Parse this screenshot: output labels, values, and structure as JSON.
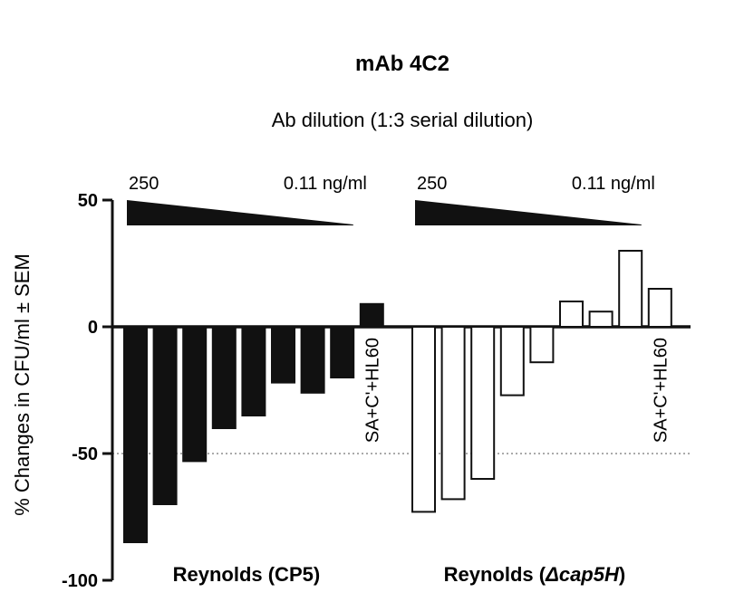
{
  "chart_data": {
    "type": "bar",
    "title": "mAb 4C2",
    "subtitle": "Ab dilution (1:3 serial dilution)",
    "ylabel": "% Changes in CFU/ml ± SEM",
    "ylim": [
      -100,
      50
    ],
    "yticks": [
      {
        "value": 50,
        "label": "50"
      },
      {
        "value": 0,
        "label": "0"
      },
      {
        "value": -50,
        "label": "-50"
      },
      {
        "value": -100,
        "label": "-100"
      }
    ],
    "reference_line": -50,
    "grid": false,
    "legend": "none",
    "series": [
      {
        "group_label_parts": [
          {
            "text": "Reynolds (CP5)",
            "italic": false
          }
        ],
        "dose_high": "250",
        "dose_low": "0.11 ng/ml",
        "values": [
          -85,
          -70,
          -53,
          -40,
          -35,
          -22,
          -26,
          -20
        ],
        "control_label": "SA+C'+HL60",
        "control_value": 9,
        "fill": "#111111",
        "stroke": "#111111"
      },
      {
        "group_label_parts": [
          {
            "text": "Reynolds (",
            "italic": false
          },
          {
            "text": "Δcap5H",
            "italic": true
          },
          {
            "text": ")",
            "italic": false
          }
        ],
        "dose_high": "250",
        "dose_low": "0.11 ng/ml",
        "values": [
          -73,
          -68,
          -60,
          -27,
          -14,
          10,
          6,
          30
        ],
        "control_label": "SA+C'+HL60",
        "control_value": 15,
        "fill": "#ffffff",
        "stroke": "#111111"
      }
    ]
  }
}
